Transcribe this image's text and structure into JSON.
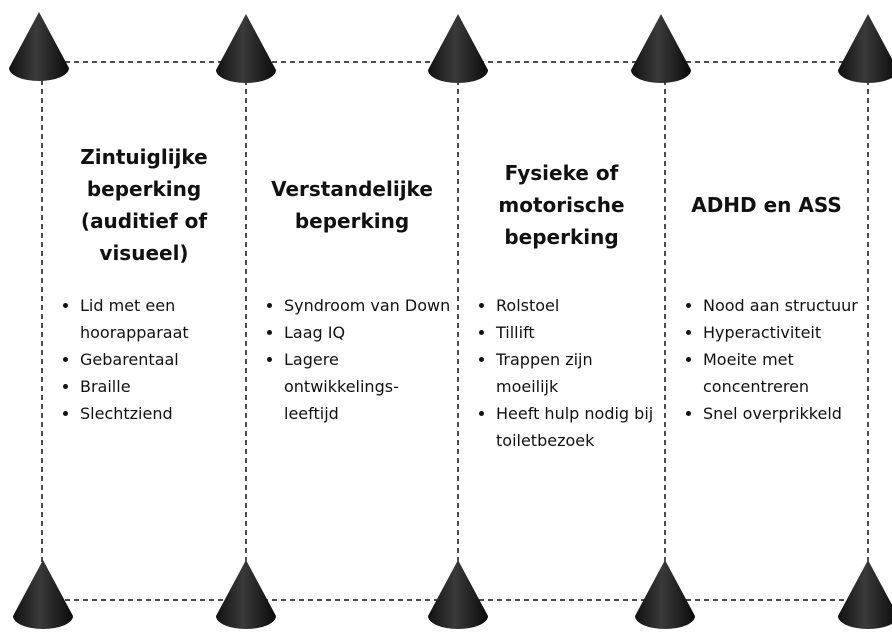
{
  "columns": [
    {
      "title": "Zintuiglijke beperking (auditief of visueel)",
      "items": [
        "Lid met een hoorapparaat",
        "Gebarentaal",
        "Braille",
        "Slechtziend"
      ]
    },
    {
      "title": "Verstandelijke beperking",
      "items": [
        "Syndroom van Down",
        "Laag IQ",
        "Lagere ontwikkelings-leeftijd"
      ]
    },
    {
      "title": "Fysieke of motorische beperking",
      "items": [
        "Rolstoel",
        "Tillift",
        "Trappen zijn moeilijk",
        "Heeft hulp nodig bij toiletbezoek"
      ]
    },
    {
      "title": "ADHD en ASS",
      "items": [
        "Nood aan structuur",
        "Hyperactiviteit",
        "Moeite met concentreren",
        "Snel overprikkeld"
      ]
    }
  ]
}
